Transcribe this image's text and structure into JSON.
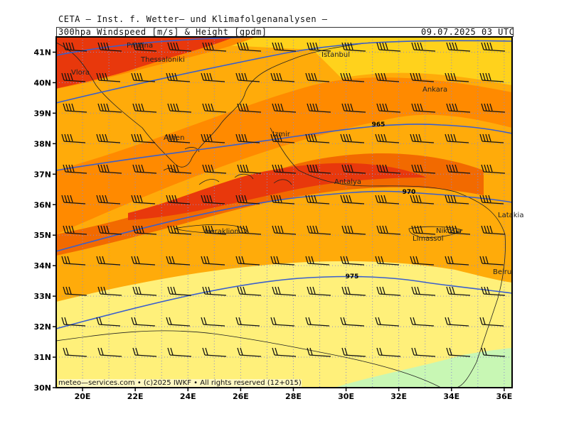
{
  "header": {
    "title": "CETA — Inst. f. Wetter— und Klimafolgenanalysen —",
    "subtitle": "300hpa Windspeed [m/s] & Height [gpdm]",
    "timestamp": "09.07.2025 03 UTC"
  },
  "footer": {
    "credit": "meteo—services.com • (c)2025 IWKF • All rights reserved (12+015)"
  },
  "map": {
    "lon_range": [
      19,
      36.3
    ],
    "lat_range": [
      30,
      41.5
    ],
    "x_ticks": [
      "20E",
      "22E",
      "24E",
      "26E",
      "28E",
      "30E",
      "32E",
      "34E",
      "36E"
    ],
    "y_ticks": [
      "30N",
      "31N",
      "32N",
      "33N",
      "34N",
      "35N",
      "36N",
      "37N",
      "38N",
      "39N",
      "40N",
      "41N"
    ],
    "contour_labels": [
      "965",
      "970",
      "975"
    ],
    "cities": [
      "Pristina",
      "Thessaloniki",
      "Vlora",
      "Istanbul",
      "Ankara",
      "Athen",
      "Izmir",
      "Antalya",
      "Heraklion",
      "Nikosia",
      "Limassol",
      "Latakia",
      "Beirut"
    ],
    "colors": {
      "yellow_light": "#fff07a",
      "yellow": "#ffd21c",
      "orange_light": "#ffab0a",
      "orange": "#ff8a00",
      "orange_dark": "#f26a00",
      "red": "#e8380c",
      "green": "#c8f7b4",
      "contour": "#3a5fcd",
      "grid": "#8a8ad0"
    }
  }
}
